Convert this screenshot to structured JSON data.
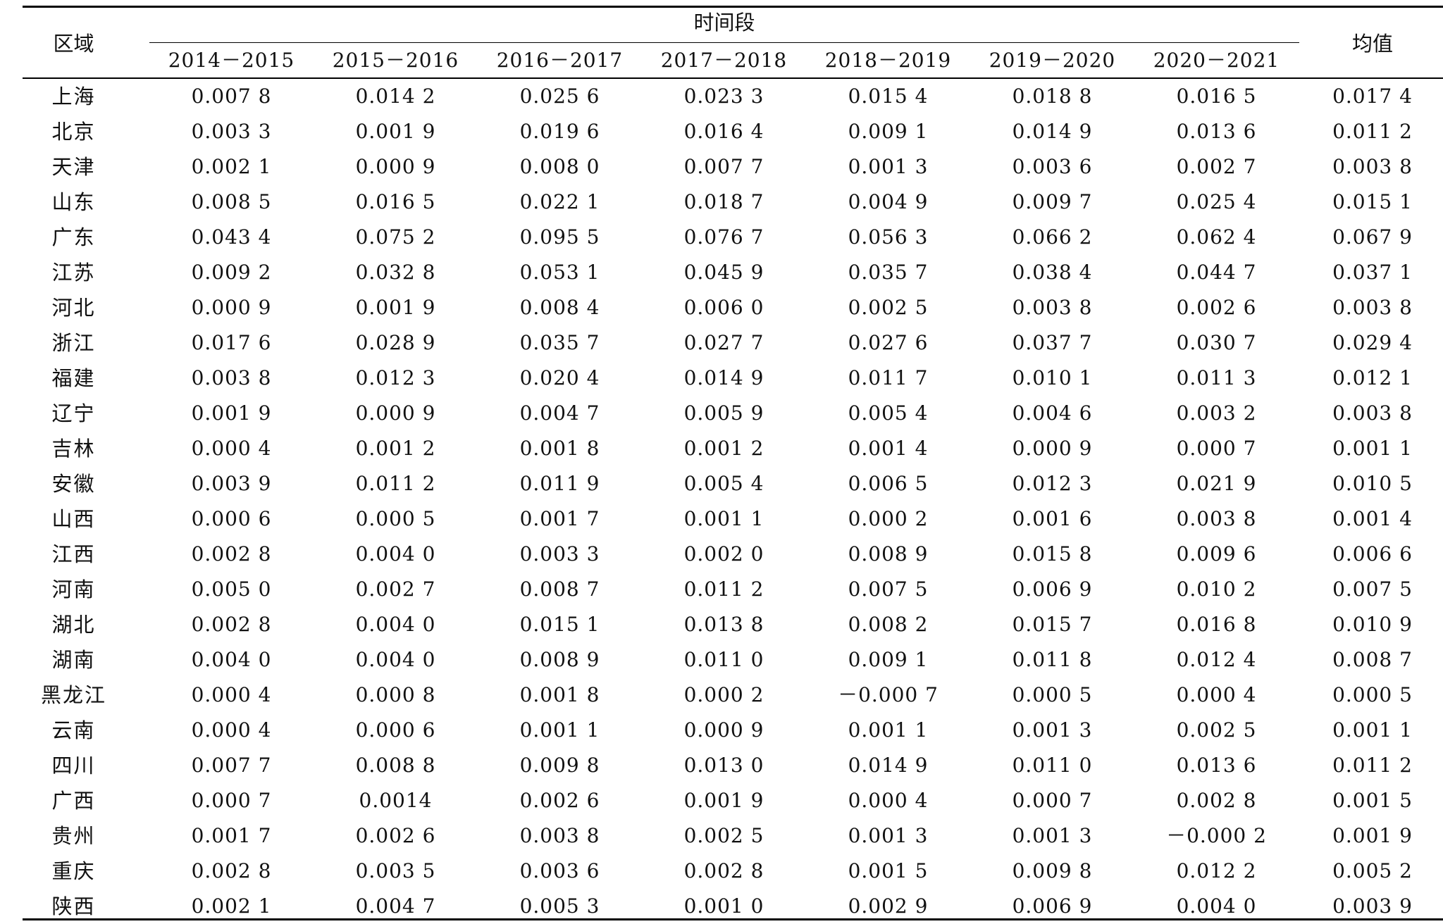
{
  "table": {
    "header": {
      "region": "区域",
      "period": "时间段",
      "years": [
        "2014－2015",
        "2015－2016",
        "2016－2017",
        "2017－2018",
        "2018－2019",
        "2019－2020",
        "2020－2021"
      ],
      "mean": "均值"
    },
    "rows": [
      {
        "region": "上海",
        "values": [
          "0.007 8",
          "0.014 2",
          "0.025 6",
          "0.023 3",
          "0.015 4",
          "0.018 8",
          "0.016 5"
        ],
        "mean": "0.017 4"
      },
      {
        "region": "北京",
        "values": [
          "0.003 3",
          "0.001 9",
          "0.019 6",
          "0.016 4",
          "0.009 1",
          "0.014 9",
          "0.013 6"
        ],
        "mean": "0.011 2"
      },
      {
        "region": "天津",
        "values": [
          "0.002 1",
          "0.000 9",
          "0.008 0",
          "0.007 7",
          "0.001 3",
          "0.003 6",
          "0.002 7"
        ],
        "mean": "0.003 8"
      },
      {
        "region": "山东",
        "values": [
          "0.008 5",
          "0.016 5",
          "0.022 1",
          "0.018 7",
          "0.004 9",
          "0.009 7",
          "0.025 4"
        ],
        "mean": "0.015 1"
      },
      {
        "region": "广东",
        "values": [
          "0.043 4",
          "0.075 2",
          "0.095 5",
          "0.076 7",
          "0.056 3",
          "0.066 2",
          "0.062 4"
        ],
        "mean": "0.067 9"
      },
      {
        "region": "江苏",
        "values": [
          "0.009 2",
          "0.032 8",
          "0.053 1",
          "0.045 9",
          "0.035 7",
          "0.038 4",
          "0.044 7"
        ],
        "mean": "0.037 1"
      },
      {
        "region": "河北",
        "values": [
          "0.000 9",
          "0.001 9",
          "0.008 4",
          "0.006 0",
          "0.002 5",
          "0.003 8",
          "0.002 6"
        ],
        "mean": "0.003 8"
      },
      {
        "region": "浙江",
        "values": [
          "0.017 6",
          "0.028 9",
          "0.035 7",
          "0.027 7",
          "0.027 6",
          "0.037 7",
          "0.030 7"
        ],
        "mean": "0.029 4"
      },
      {
        "region": "福建",
        "values": [
          "0.003 8",
          "0.012 3",
          "0.020 4",
          "0.014 9",
          "0.011 7",
          "0.010 1",
          "0.011 3"
        ],
        "mean": "0.012 1"
      },
      {
        "region": "辽宁",
        "values": [
          "0.001 9",
          "0.000 9",
          "0.004 7",
          "0.005 9",
          "0.005 4",
          "0.004 6",
          "0.003 2"
        ],
        "mean": "0.003 8"
      },
      {
        "region": "吉林",
        "values": [
          "0.000 4",
          "0.001 2",
          "0.001 8",
          "0.001 2",
          "0.001 4",
          "0.000 9",
          "0.000 7"
        ],
        "mean": "0.001 1"
      },
      {
        "region": "安徽",
        "values": [
          "0.003 9",
          "0.011 2",
          "0.011 9",
          "0.005 4",
          "0.006 5",
          "0.012 3",
          "0.021 9"
        ],
        "mean": "0.010 5"
      },
      {
        "region": "山西",
        "values": [
          "0.000 6",
          "0.000 5",
          "0.001 7",
          "0.001 1",
          "0.000 2",
          "0.001 6",
          "0.003 8"
        ],
        "mean": "0.001 4"
      },
      {
        "region": "江西",
        "values": [
          "0.002 8",
          "0.004 0",
          "0.003 3",
          "0.002 0",
          "0.008 9",
          "0.015 8",
          "0.009 6"
        ],
        "mean": "0.006 6"
      },
      {
        "region": "河南",
        "values": [
          "0.005 0",
          "0.002 7",
          "0.008 7",
          "0.011 2",
          "0.007 5",
          "0.006 9",
          "0.010 2"
        ],
        "mean": "0.007 5"
      },
      {
        "region": "湖北",
        "values": [
          "0.002 8",
          "0.004 0",
          "0.015 1",
          "0.013 8",
          "0.008 2",
          "0.015 7",
          "0.016 8"
        ],
        "mean": "0.010 9"
      },
      {
        "region": "湖南",
        "values": [
          "0.004 0",
          "0.004 0",
          "0.008 9",
          "0.011 0",
          "0.009 1",
          "0.011 8",
          "0.012 4"
        ],
        "mean": "0.008 7"
      },
      {
        "region": "黑龙江",
        "values": [
          "0.000 4",
          "0.000 8",
          "0.001 8",
          "0.000 2",
          "－0.000 7",
          "0.000 5",
          "0.000 4"
        ],
        "mean": "0.000 5"
      },
      {
        "region": "云南",
        "values": [
          "0.000 4",
          "0.000 6",
          "0.001 1",
          "0.000 9",
          "0.001 1",
          "0.001 3",
          "0.002 5"
        ],
        "mean": "0.001 1"
      },
      {
        "region": "四川",
        "values": [
          "0.007 7",
          "0.008 8",
          "0.009 8",
          "0.013 0",
          "0.014 9",
          "0.011 0",
          "0.013 6"
        ],
        "mean": "0.011 2"
      },
      {
        "region": "广西",
        "values": [
          "0.000 7",
          "0.0014",
          "0.002 6",
          "0.001 9",
          "0.000 4",
          "0.000 7",
          "0.002 8"
        ],
        "mean": "0.001 5"
      },
      {
        "region": "贵州",
        "values": [
          "0.001 7",
          "0.002 6",
          "0.003 8",
          "0.002 5",
          "0.001 3",
          "0.001 3",
          "－0.000 2"
        ],
        "mean": "0.001 9"
      },
      {
        "region": "重庆",
        "values": [
          "0.002 8",
          "0.003 5",
          "0.003 6",
          "0.002 8",
          "0.001 5",
          "0.009 8",
          "0.012 2"
        ],
        "mean": "0.005 2"
      },
      {
        "region": "陕西",
        "values": [
          "0.002 1",
          "0.004 7",
          "0.005 3",
          "0.001 0",
          "0.002 9",
          "0.006 9",
          "0.004 0"
        ],
        "mean": "0.003 9"
      }
    ]
  }
}
